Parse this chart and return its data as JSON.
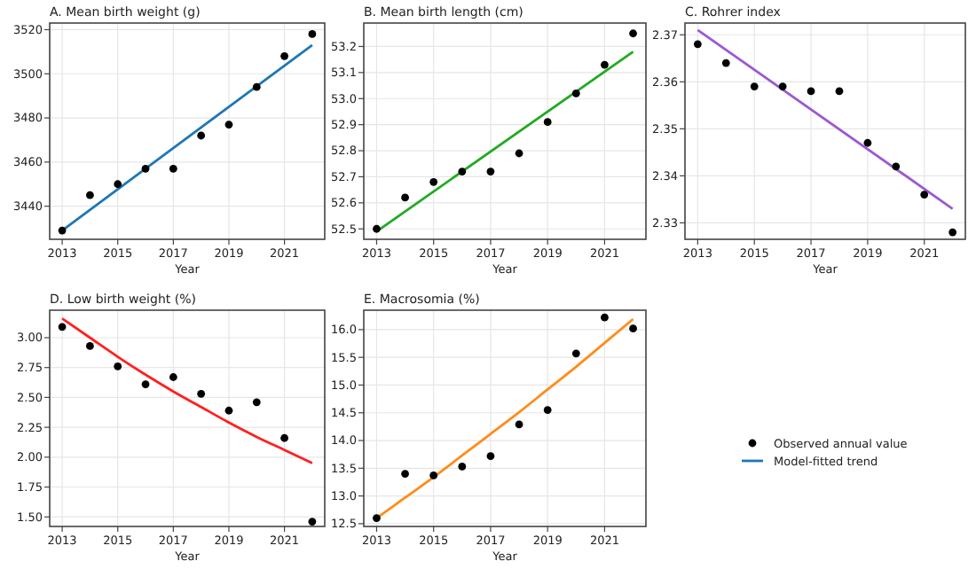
{
  "chart_data": [
    {
      "type": "scatter",
      "title": "A. Mean birth weight (g)",
      "xlabel": "Year",
      "x": [
        2013,
        2014,
        2015,
        2016,
        2017,
        2018,
        2019,
        2020,
        2021,
        2022
      ],
      "xlim": [
        2012.55,
        2022.45
      ],
      "xticks": [
        2013,
        2015,
        2017,
        2019,
        2021
      ],
      "ylim": [
        3425,
        3523
      ],
      "yticks": [
        3440,
        3460,
        3480,
        3500,
        3520
      ],
      "grid": true,
      "marker": "circle",
      "legend": "bottom right",
      "series": [
        {
          "name": "Observed annual value",
          "color": "#000000",
          "values": [
            3429,
            3445,
            3450,
            3457,
            3457,
            3472,
            3477,
            3494,
            3508,
            3518
          ]
        },
        {
          "name": "Model-fitted trend",
          "type": "line",
          "marker": "none",
          "color": "#1f77b4",
          "x": [
            2013,
            2022
          ],
          "values": [
            3429,
            3513
          ]
        }
      ]
    },
    {
      "type": "scatter",
      "title": "B. Mean birth length (cm)",
      "xlabel": "Year",
      "x": [
        2013,
        2014,
        2015,
        2016,
        2017,
        2018,
        2019,
        2020,
        2021,
        2022
      ],
      "xlim": [
        2012.55,
        2022.45
      ],
      "xticks": [
        2013,
        2015,
        2017,
        2019,
        2021
      ],
      "ylim": [
        52.46,
        53.29
      ],
      "yticks": [
        {
          "value": 52.5,
          "label": "52.5"
        },
        {
          "value": 52.6,
          "label": "52.6"
        },
        {
          "value": 52.7,
          "label": "52.7"
        },
        {
          "value": 52.8,
          "label": "52.8"
        },
        {
          "value": 52.9,
          "label": "52.9"
        },
        {
          "value": 53.0,
          "label": "53.0"
        },
        {
          "value": 53.1,
          "label": "53.1"
        },
        {
          "value": 53.2,
          "label": "53.2"
        }
      ],
      "grid": true,
      "marker": "circle",
      "series": [
        {
          "color": "#000000",
          "values": [
            52.5,
            52.62,
            52.68,
            52.72,
            52.72,
            52.79,
            52.91,
            53.02,
            53.13,
            53.25
          ]
        },
        {
          "type": "line",
          "marker": "none",
          "color": "#22aa22",
          "x": [
            2013,
            2022
          ],
          "values": [
            52.49,
            53.18
          ]
        }
      ]
    },
    {
      "type": "scatter",
      "title": "C. Rohrer index",
      "xlabel": "Year",
      "x": [
        2013,
        2014,
        2015,
        2016,
        2017,
        2018,
        2019,
        2020,
        2021,
        2022
      ],
      "xlim": [
        2012.55,
        2022.45
      ],
      "xticks": [
        2013,
        2015,
        2017,
        2019,
        2021
      ],
      "ylim": [
        2.3265,
        2.3725
      ],
      "yticks": [
        {
          "value": 2.33,
          "label": "2.33"
        },
        {
          "value": 2.34,
          "label": "2.34"
        },
        {
          "value": 2.35,
          "label": "2.35"
        },
        {
          "value": 2.36,
          "label": "2.36"
        },
        {
          "value": 2.37,
          "label": "2.37"
        }
      ],
      "grid": true,
      "marker": "circle",
      "series": [
        {
          "color": "#000000",
          "values": [
            2.368,
            2.364,
            2.359,
            2.359,
            2.358,
            2.358,
            2.347,
            2.342,
            2.336,
            2.328
          ]
        },
        {
          "type": "line",
          "marker": "none",
          "color": "#9b59d0",
          "x": [
            2013,
            2022
          ],
          "values": [
            2.371,
            2.333
          ]
        }
      ]
    },
    {
      "type": "scatter",
      "title": "D. Low birth weight (%)",
      "xlabel": "Year",
      "x": [
        2013,
        2014,
        2015,
        2016,
        2017,
        2018,
        2019,
        2020,
        2021,
        2022
      ],
      "xlim": [
        2012.55,
        2022.45
      ],
      "xticks": [
        2013,
        2015,
        2017,
        2019,
        2021
      ],
      "ylim": [
        1.42,
        3.23
      ],
      "yticks": [
        {
          "value": 1.5,
          "label": "1.50"
        },
        {
          "value": 1.75,
          "label": "1.75"
        },
        {
          "value": 2.0,
          "label": "2.00"
        },
        {
          "value": 2.25,
          "label": "2.25"
        },
        {
          "value": 2.5,
          "label": "2.50"
        },
        {
          "value": 2.75,
          "label": "2.75"
        },
        {
          "value": 3.0,
          "label": "3.00"
        }
      ],
      "grid": true,
      "marker": "circle",
      "series": [
        {
          "color": "#000000",
          "values": [
            3.09,
            2.93,
            2.76,
            2.61,
            2.67,
            2.53,
            2.39,
            2.46,
            2.16,
            1.46
          ]
        },
        {
          "type": "line",
          "marker": "none",
          "color": "#ff2020",
          "x": [
            2013,
            2014,
            2015,
            2016,
            2017,
            2018,
            2019,
            2020,
            2021,
            2022
          ],
          "values": [
            3.16,
            3.0,
            2.84,
            2.69,
            2.55,
            2.42,
            2.29,
            2.17,
            2.06,
            1.95
          ]
        }
      ]
    },
    {
      "type": "scatter",
      "title": "E. Macrosomia (%)",
      "xlabel": "Year",
      "x": [
        2013,
        2014,
        2015,
        2016,
        2017,
        2018,
        2019,
        2020,
        2021,
        2022
      ],
      "xlim": [
        2012.55,
        2022.45
      ],
      "xticks": [
        2013,
        2015,
        2017,
        2019,
        2021
      ],
      "ylim": [
        12.45,
        16.35
      ],
      "yticks": [
        {
          "value": 12.5,
          "label": "12.5"
        },
        {
          "value": 13.0,
          "label": "13.0"
        },
        {
          "value": 13.5,
          "label": "13.5"
        },
        {
          "value": 14.0,
          "label": "14.0"
        },
        {
          "value": 14.5,
          "label": "14.5"
        },
        {
          "value": 15.0,
          "label": "15.0"
        },
        {
          "value": 15.5,
          "label": "15.5"
        },
        {
          "value": 16.0,
          "label": "16.0"
        }
      ],
      "grid": true,
      "marker": "circle",
      "series": [
        {
          "color": "#000000",
          "values": [
            12.6,
            13.4,
            13.37,
            13.53,
            13.72,
            14.29,
            14.55,
            15.57,
            16.22,
            16.02
          ]
        },
        {
          "type": "line",
          "marker": "none",
          "color": "#ff8c1a",
          "x": [
            2013,
            2014,
            2015,
            2016,
            2017,
            2018,
            2019,
            2020,
            2021,
            2022
          ],
          "values": [
            12.6,
            12.97,
            13.34,
            13.73,
            14.12,
            14.51,
            14.92,
            15.33,
            15.76,
            16.19
          ]
        }
      ]
    }
  ]
}
